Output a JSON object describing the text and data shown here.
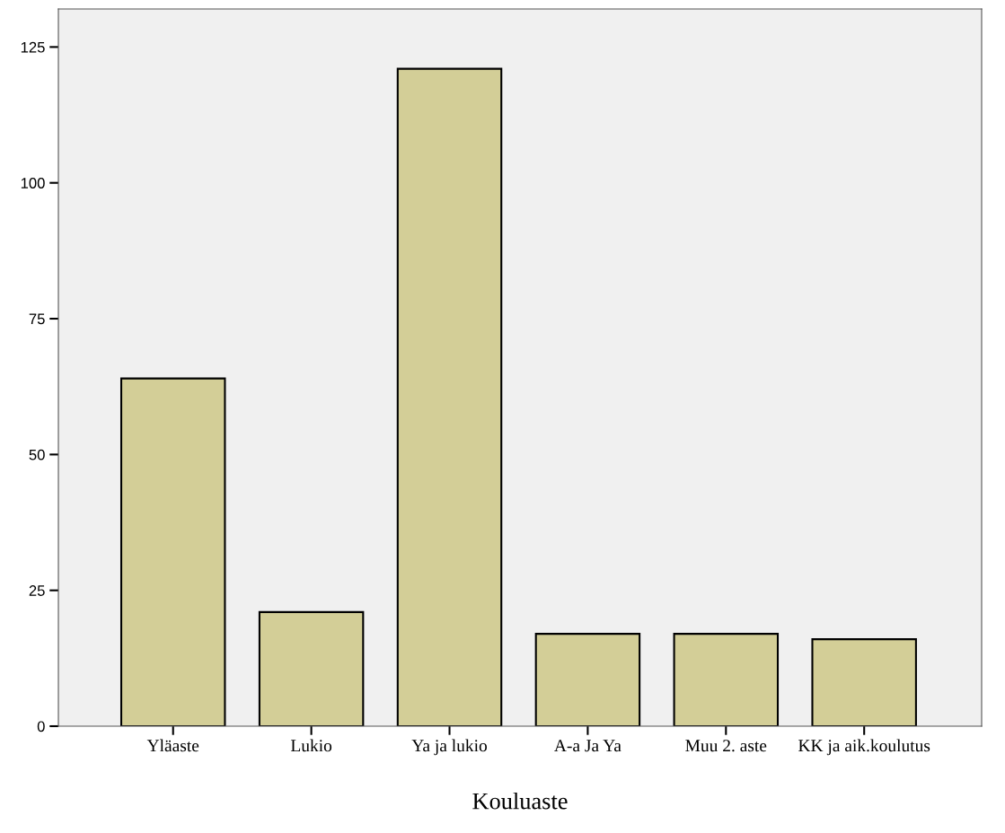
{
  "chart_data": {
    "type": "bar",
    "xlabel": "Kouluaste",
    "categories": [
      "Yläaste",
      "Lukio",
      "Ya ja lukio",
      "A-a Ja Ya",
      "Muu 2. aste",
      "KK ja aik.koulutus"
    ],
    "values": [
      64,
      21,
      121,
      17,
      17,
      16
    ],
    "color": "#d3ce97",
    "ylim": [
      0,
      132
    ],
    "yticks": [
      0,
      25,
      50,
      75,
      100,
      125
    ],
    "grid": false,
    "legend": false
  }
}
